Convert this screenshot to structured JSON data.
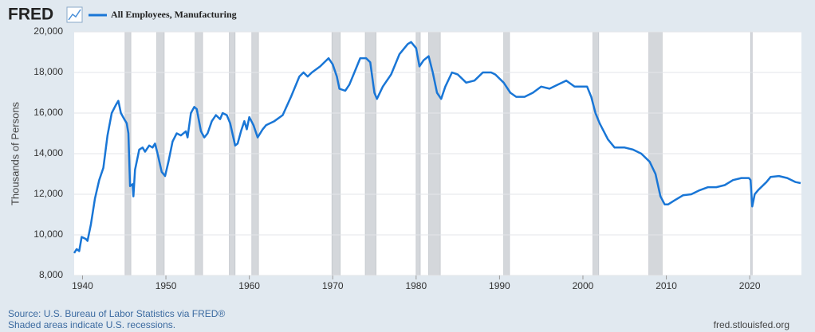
{
  "chart_data": {
    "type": "line",
    "brand": "FRED",
    "ylabel": "Thousands of Persons",
    "source": "Source: U.S. Bureau of Labor Statistics via FRED®",
    "note": "Shaded areas indicate U.S. recessions.",
    "site": "fred.stlouisfed.org",
    "xlim": [
      1939,
      2026.2
    ],
    "ylim": [
      8000,
      20000
    ],
    "xticks": [
      1940,
      1950,
      1960,
      1970,
      1980,
      1990,
      2000,
      2010,
      2020
    ],
    "yticks": [
      {
        "value": 8000,
        "label": "8,000"
      },
      {
        "value": 10000,
        "label": "10,000"
      },
      {
        "value": 12000,
        "label": "12,000"
      },
      {
        "value": 14000,
        "label": "14,000"
      },
      {
        "value": 16000,
        "label": "16,000"
      },
      {
        "value": 18000,
        "label": "18,000"
      },
      {
        "value": 20000,
        "label": "20,000"
      }
    ],
    "grid": true,
    "recession_color": "#d4d7db",
    "recessions": [
      [
        1945.1,
        1945.8
      ],
      [
        1948.9,
        1949.8
      ],
      [
        1953.5,
        1954.4
      ],
      [
        1957.6,
        1958.3
      ],
      [
        1960.3,
        1961.1
      ],
      [
        1969.9,
        1970.9
      ],
      [
        1973.9,
        1975.2
      ],
      [
        1980.0,
        1980.5
      ],
      [
        1981.5,
        1982.9
      ],
      [
        1990.5,
        1991.2
      ],
      [
        2001.2,
        2001.9
      ],
      [
        2007.9,
        2009.5
      ],
      [
        2020.1,
        2020.3
      ]
    ],
    "x": [
      1939.0,
      1939.3,
      1939.6,
      1939.9,
      1940.4,
      1940.6,
      1941.0,
      1941.5,
      1942.0,
      1942.5,
      1943.0,
      1943.5,
      1944.0,
      1944.3,
      1944.6,
      1945.0,
      1945.3,
      1945.5,
      1945.7,
      1946.0,
      1946.1,
      1946.3,
      1946.8,
      1947.2,
      1947.5,
      1948.0,
      1948.4,
      1948.7,
      1949.0,
      1949.5,
      1949.9,
      1950.3,
      1950.8,
      1951.3,
      1951.8,
      1952.4,
      1952.6,
      1953.0,
      1953.4,
      1953.7,
      1954.2,
      1954.6,
      1955.0,
      1955.5,
      1956.0,
      1956.5,
      1956.8,
      1957.3,
      1957.7,
      1958.3,
      1958.6,
      1959.0,
      1959.4,
      1959.7,
      1960.0,
      1960.5,
      1961.0,
      1961.6,
      1962.0,
      1963.0,
      1964.0,
      1965.0,
      1966.0,
      1966.5,
      1967.0,
      1967.5,
      1968.5,
      1969.5,
      1970.0,
      1970.5,
      1970.8,
      1971.5,
      1972.0,
      1972.6,
      1973.3,
      1974.0,
      1974.5,
      1975.0,
      1975.3,
      1976.0,
      1977.0,
      1978.0,
      1979.0,
      1979.4,
      1980.0,
      1980.4,
      1980.9,
      1981.5,
      1982.0,
      1982.5,
      1983.0,
      1983.5,
      1984.3,
      1985.0,
      1986.0,
      1987.0,
      1988.0,
      1989.0,
      1989.5,
      1990.5,
      1991.3,
      1992.0,
      1993.0,
      1994.0,
      1995.0,
      1996.0,
      1997.0,
      1998.0,
      1999.0,
      2000.0,
      2000.5,
      2001.0,
      2001.5,
      2002.0,
      2003.0,
      2003.8,
      2005.0,
      2006.0,
      2007.0,
      2008.0,
      2008.7,
      2009.3,
      2009.8,
      2010.2,
      2011.0,
      2012.0,
      2013.0,
      2014.0,
      2015.0,
      2016.0,
      2017.0,
      2018.0,
      2019.0,
      2019.9,
      2020.1,
      2020.3,
      2020.6,
      2021.0,
      2022.0,
      2022.5,
      2023.5,
      2024.5,
      2025.5,
      2026.1
    ],
    "series": [
      {
        "name": "All Employees, Manufacturing",
        "color": "#1976d6",
        "values": [
          9100,
          9300,
          9200,
          9900,
          9800,
          9700,
          10500,
          11800,
          12700,
          13300,
          14900,
          16000,
          16400,
          16600,
          16000,
          15700,
          15500,
          15000,
          12400,
          12500,
          11900,
          13200,
          14200,
          14300,
          14100,
          14400,
          14300,
          14500,
          14000,
          13100,
          12900,
          13600,
          14600,
          15000,
          14900,
          15100,
          14800,
          16000,
          16300,
          16200,
          15100,
          14800,
          15000,
          15600,
          15900,
          15700,
          16000,
          15900,
          15500,
          14400,
          14500,
          15100,
          15600,
          15200,
          15800,
          15400,
          14800,
          15200,
          15400,
          15600,
          15900,
          16800,
          17800,
          18000,
          17800,
          18000,
          18300,
          18700,
          18400,
          17800,
          17200,
          17100,
          17400,
          18000,
          18700,
          18700,
          18500,
          17000,
          16700,
          17300,
          17900,
          18900,
          19400,
          19500,
          19200,
          18300,
          18600,
          18800,
          18000,
          17000,
          16700,
          17300,
          18000,
          17900,
          17500,
          17600,
          18000,
          18000,
          17900,
          17500,
          17000,
          16800,
          16800,
          17000,
          17300,
          17200,
          17400,
          17600,
          17300,
          17300,
          17300,
          16800,
          16000,
          15500,
          14700,
          14300,
          14300,
          14200,
          14000,
          13600,
          13000,
          11900,
          11500,
          11500,
          11700,
          11950,
          12000,
          12200,
          12350,
          12350,
          12450,
          12700,
          12800,
          12800,
          12700,
          11400,
          12000,
          12200,
          12600,
          12850,
          12900,
          12800,
          12600,
          12550
        ]
      }
    ]
  }
}
